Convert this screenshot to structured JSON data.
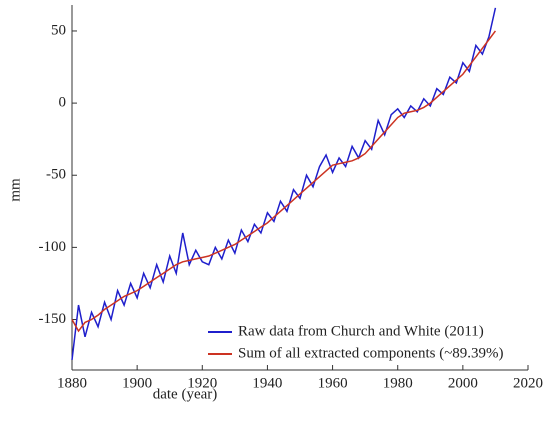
{
  "chart_data": {
    "type": "line",
    "xlabel": "date (year)",
    "ylabel": "mm",
    "x": [
      1880,
      1882,
      1884,
      1886,
      1888,
      1890,
      1892,
      1894,
      1896,
      1898,
      1900,
      1902,
      1904,
      1906,
      1908,
      1910,
      1912,
      1914,
      1916,
      1918,
      1920,
      1922,
      1924,
      1926,
      1928,
      1930,
      1932,
      1934,
      1936,
      1938,
      1940,
      1942,
      1944,
      1946,
      1948,
      1950,
      1952,
      1954,
      1956,
      1958,
      1960,
      1962,
      1964,
      1966,
      1968,
      1970,
      1972,
      1974,
      1976,
      1978,
      1980,
      1982,
      1984,
      1986,
      1988,
      1990,
      1992,
      1994,
      1996,
      1998,
      2000,
      2002,
      2004,
      2006,
      2008,
      2010
    ],
    "series": [
      {
        "name": "Raw data from Church and White (2011)",
        "color": "#1f1fcc",
        "values": [
          -178,
          -140,
          -162,
          -145,
          -155,
          -138,
          -150,
          -130,
          -140,
          -125,
          -135,
          -118,
          -128,
          -112,
          -124,
          -106,
          -118,
          -90,
          -112,
          -102,
          -110,
          -112,
          -100,
          -108,
          -95,
          -104,
          -88,
          -96,
          -84,
          -90,
          -76,
          -82,
          -68,
          -75,
          -60,
          -66,
          -50,
          -58,
          -44,
          -36,
          -48,
          -38,
          -44,
          -30,
          -38,
          -26,
          -32,
          -12,
          -22,
          -8,
          -4,
          -10,
          -2,
          -6,
          3,
          -2,
          10,
          6,
          18,
          14,
          28,
          22,
          40,
          34,
          46,
          66
        ]
      },
      {
        "name": "Sum of all extracted components (~89.39%)",
        "color": "#cc3322",
        "values": [
          -150,
          -158,
          -152,
          -150,
          -147,
          -143,
          -140,
          -137,
          -134,
          -132,
          -130,
          -127,
          -124,
          -121,
          -118,
          -115,
          -112,
          -110,
          -109,
          -108,
          -107,
          -106,
          -104,
          -102,
          -100,
          -98,
          -95,
          -92,
          -89,
          -86,
          -83,
          -79,
          -75,
          -71,
          -67,
          -63,
          -59,
          -55,
          -51,
          -47,
          -43,
          -42,
          -41,
          -40,
          -38,
          -35,
          -30,
          -25,
          -20,
          -15,
          -10,
          -7,
          -6,
          -5,
          -3,
          0,
          4,
          8,
          12,
          16,
          20,
          26,
          32,
          38,
          44,
          50
        ]
      }
    ],
    "xlim": [
      1880,
      2020
    ],
    "xticks": [
      1880,
      1900,
      1920,
      1940,
      1960,
      1980,
      2000,
      2020
    ],
    "ylim": [
      -185,
      68
    ],
    "yticks": [
      -150,
      -100,
      -50,
      0,
      50
    ],
    "legend": "lower right"
  }
}
